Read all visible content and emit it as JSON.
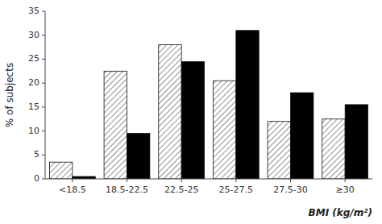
{
  "chart_data": {
    "type": "bar",
    "categories": [
      "<18.5",
      "18.5-22.5",
      "22.5-25",
      "25-27.5",
      "27.5-30",
      "≥30"
    ],
    "series": [
      {
        "color": "white",
        "values": [
          3.5,
          22.5,
          28.0,
          20.5,
          12.0,
          12.5
        ]
      },
      {
        "color": "black",
        "values": [
          0.5,
          9.5,
          24.5,
          31.0,
          18.0,
          15.5
        ]
      }
    ],
    "ylabel": "% of subjects",
    "xlabel": "BMI (kg/m²)",
    "ylim": [
      0,
      35
    ],
    "yticks": [
      0,
      5,
      10,
      15,
      20,
      25,
      30,
      35
    ],
    "grid": false
  }
}
